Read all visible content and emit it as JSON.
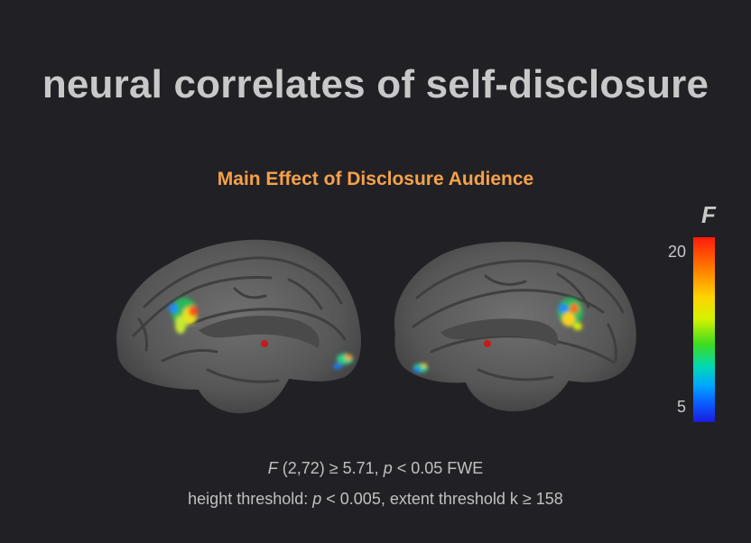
{
  "slide": {
    "title": "neural correlates of self-disclosure",
    "subtitle": "Main Effect of Disclosure Audience"
  },
  "colorbar": {
    "label": "F",
    "max_label": "20",
    "min_label": "5",
    "colors": [
      "#ff1a0c",
      "#ff6a00",
      "#ffd200",
      "#d7f200",
      "#3cdc22",
      "#00d8b4",
      "#00a8ff",
      "#0b5bff",
      "#1b1bdc"
    ]
  },
  "stats": {
    "line1": {
      "f_symbol": "F",
      "f_df": " (2,72) ≥ 5.71, ",
      "p_symbol": "p",
      "p_value": " < 0.05 FWE"
    },
    "line2": {
      "prefix": "height threshold: ",
      "p_symbol": "p",
      "suffix": " < 0.005,  extent threshold k ≥ 158"
    }
  },
  "colors": {
    "background": "#212125",
    "title": "#c8c8c8",
    "subtitle": "#f6a14b",
    "brain_surface": "#5a5a5a",
    "marker": "#c81a1a"
  }
}
